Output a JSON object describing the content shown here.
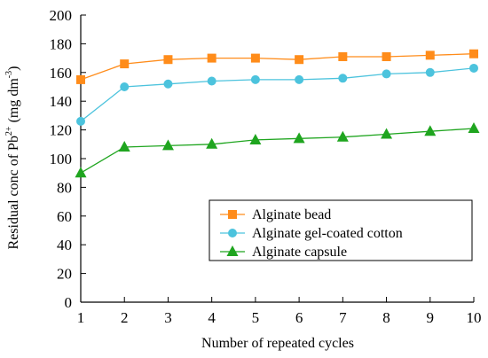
{
  "chart_data": {
    "type": "line",
    "xlabel": "Number of repeated cycles",
    "ylabel": {
      "prefix": "Residual conc of Pb",
      "ion_charge": "2+",
      "units_open": " (mg dm",
      "units_exp": "-3",
      "units_close": ")"
    },
    "x": [
      1,
      2,
      3,
      4,
      5,
      6,
      7,
      8,
      9,
      10
    ],
    "x_ticks": [
      "1",
      "2",
      "3",
      "4",
      "5",
      "6",
      "7",
      "8",
      "9",
      "10"
    ],
    "y_ticks": [
      "0",
      "20",
      "40",
      "60",
      "80",
      "100",
      "120",
      "140",
      "160",
      "180",
      "200"
    ],
    "xlim": [
      1,
      10
    ],
    "ylim": [
      0,
      200
    ],
    "grid": false,
    "legend_position": "lower-right",
    "series": [
      {
        "name": "Alginate bead",
        "marker": "square",
        "color": "#ff8c1a",
        "values": [
          155,
          166,
          169,
          170,
          170,
          169,
          171,
          171,
          172,
          173
        ]
      },
      {
        "name": "Alginate gel-coated cotton",
        "marker": "circle",
        "color": "#4cc3dd",
        "values": [
          126,
          150,
          152,
          154,
          155,
          155,
          156,
          159,
          160,
          163
        ]
      },
      {
        "name": "Alginate capsule",
        "marker": "triangle",
        "color": "#1fa51f",
        "values": [
          90,
          108,
          109,
          110,
          113,
          114,
          115,
          117,
          119,
          121
        ]
      }
    ]
  }
}
